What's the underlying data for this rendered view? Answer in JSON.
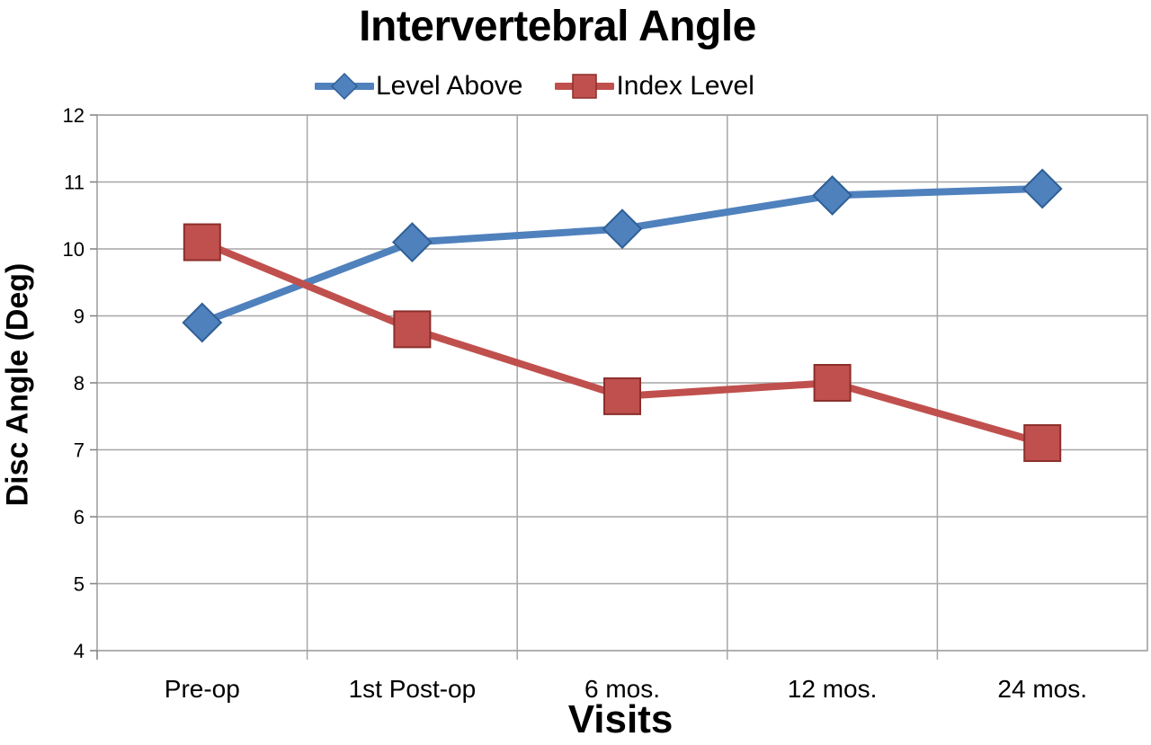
{
  "chart_data": {
    "type": "line",
    "title": "Intervertebral Angle",
    "xlabel": "Visits",
    "ylabel": "Disc Angle (Deg)",
    "categories": [
      "Pre-op",
      "1st Post-op",
      "6 mos.",
      "12 mos.",
      "24 mos."
    ],
    "ylim": [
      4,
      12
    ],
    "yticks": [
      4,
      5,
      6,
      7,
      8,
      9,
      10,
      11,
      12
    ],
    "grid": true,
    "legend_position": "top",
    "series": [
      {
        "name": "Level Above",
        "marker": "diamond",
        "color": "#4f81bd",
        "values": [
          8.9,
          10.1,
          10.3,
          10.8,
          10.9
        ]
      },
      {
        "name": "Index Level",
        "marker": "square",
        "color": "#c0504d",
        "values": [
          10.1,
          8.8,
          7.8,
          8.0,
          7.1
        ]
      }
    ]
  }
}
